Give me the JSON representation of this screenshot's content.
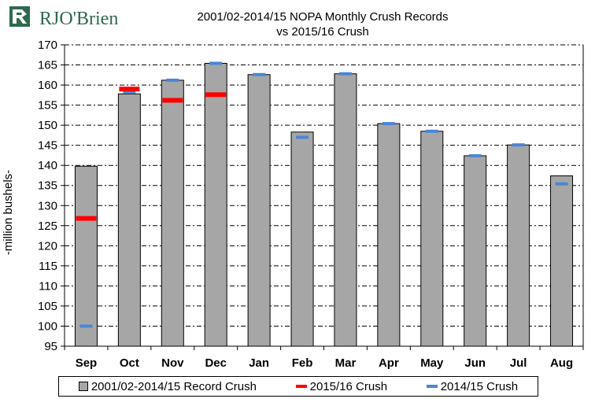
{
  "logo": {
    "text": "RJO'Brien",
    "color": "#2e6a4e"
  },
  "chart_data": {
    "type": "bar",
    "title_lines": [
      "2001/02-2014/15 NOPA Monthly Crush Records",
      "vs 2015/16 Crush"
    ],
    "ylabel": "-million bushels-",
    "xlabel": "",
    "ylim": [
      95,
      170
    ],
    "yticks": [
      95,
      100,
      105,
      110,
      115,
      120,
      125,
      130,
      135,
      140,
      145,
      150,
      155,
      160,
      165,
      170
    ],
    "grid": "horizontal-dashed",
    "legend_position": "bottom",
    "categories": [
      "Sep",
      "Oct",
      "Nov",
      "Dec",
      "Jan",
      "Feb",
      "Mar",
      "Apr",
      "May",
      "Jun",
      "Jul",
      "Aug"
    ],
    "series": [
      {
        "name": "2001/02-2014/15 Record Crush",
        "kind": "bar",
        "color": "#a6a6a6",
        "values": [
          139.8,
          157.8,
          161.2,
          165.4,
          162.6,
          148.3,
          162.8,
          150.4,
          148.5,
          142.4,
          145.1,
          137.4
        ]
      },
      {
        "name": "2015/16 Crush",
        "kind": "marker",
        "color": "#ff0000",
        "values": [
          126.8,
          159.0,
          156.2,
          157.6,
          null,
          null,
          null,
          null,
          null,
          null,
          null,
          null
        ]
      },
      {
        "name": "2014/15 Crush",
        "kind": "marker",
        "color": "#4a86d4",
        "values": [
          100.0,
          158.3,
          161.2,
          165.4,
          162.6,
          147.0,
          162.8,
          150.4,
          148.5,
          142.4,
          145.1,
          135.4
        ]
      }
    ]
  }
}
